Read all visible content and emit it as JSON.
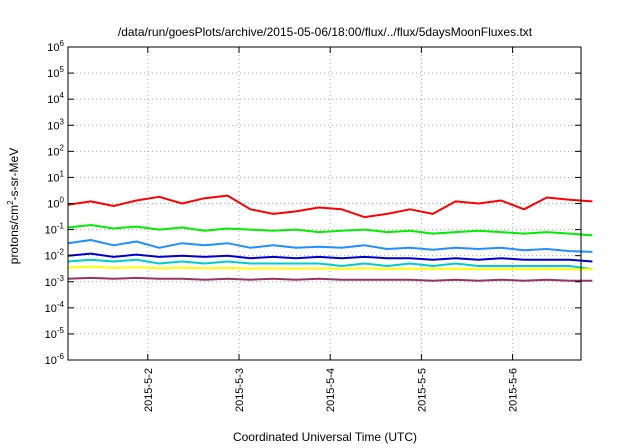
{
  "chart_data": {
    "type": "line",
    "title": "/data/run/goesPlots/archive/2015-05-06/18:00/flux/../flux/5daysMoonFluxes.txt",
    "xlabel": "Coordinated Universal Time (UTC)",
    "ylabel": {
      "pre": "protons/cm",
      "sup": "2",
      "post": "-s-sr-MeV"
    },
    "yscale": "log",
    "ylim": [
      1e-06,
      1000000.0
    ],
    "xlim": [
      "2015-05-01 03:00",
      "2015-05-06 18:00"
    ],
    "grid": true,
    "x_ticks": [
      "2015-5-2",
      "2015-5-3",
      "2015-5-4",
      "2015-5-5",
      "2015-5-6"
    ],
    "y_ticks": [
      {
        "base": "10",
        "exp": "-6"
      },
      {
        "base": "10",
        "exp": "-5"
      },
      {
        "base": "10",
        "exp": "-4"
      },
      {
        "base": "10",
        "exp": "-3"
      },
      {
        "base": "10",
        "exp": "-2"
      },
      {
        "base": "10",
        "exp": "-1"
      },
      {
        "base": "10",
        "exp": "0"
      },
      {
        "base": "10",
        "exp": "1"
      },
      {
        "base": "10",
        "exp": "2"
      },
      {
        "base": "10",
        "exp": "3"
      },
      {
        "base": "10",
        "exp": "4"
      },
      {
        "base": "10",
        "exp": "5"
      },
      {
        "base": "10",
        "exp": "6"
      }
    ],
    "x_days": [
      0.0,
      0.25,
      0.5,
      0.75,
      1.0,
      1.25,
      1.5,
      1.75,
      2.0,
      2.25,
      2.5,
      2.75,
      3.0,
      3.25,
      3.5,
      3.75,
      4.0,
      4.25,
      4.5,
      4.75,
      5.0,
      5.25,
      5.5,
      5.75
    ],
    "x_day_origin": "2015-05-01 03:00",
    "series": [
      {
        "color": "#ff0000",
        "values": [
          0.9,
          1.2,
          0.8,
          1.3,
          1.8,
          1.0,
          1.6,
          2.0,
          0.6,
          0.4,
          0.5,
          0.7,
          0.6,
          0.3,
          0.4,
          0.6,
          0.4,
          1.2,
          1.0,
          1.3,
          0.6,
          1.7,
          1.4,
          1.2
        ]
      },
      {
        "color": "#00ee00",
        "values": [
          0.12,
          0.15,
          0.11,
          0.13,
          0.1,
          0.12,
          0.09,
          0.11,
          0.1,
          0.09,
          0.1,
          0.08,
          0.09,
          0.1,
          0.08,
          0.09,
          0.07,
          0.08,
          0.09,
          0.08,
          0.07,
          0.08,
          0.07,
          0.06
        ]
      },
      {
        "color": "#1e90ff",
        "values": [
          0.03,
          0.04,
          0.025,
          0.035,
          0.02,
          0.03,
          0.025,
          0.03,
          0.02,
          0.025,
          0.02,
          0.022,
          0.02,
          0.025,
          0.018,
          0.02,
          0.017,
          0.02,
          0.018,
          0.02,
          0.016,
          0.018,
          0.015,
          0.014
        ]
      },
      {
        "color": "#0000cc",
        "values": [
          0.01,
          0.012,
          0.009,
          0.011,
          0.009,
          0.01,
          0.009,
          0.01,
          0.008,
          0.009,
          0.008,
          0.009,
          0.008,
          0.009,
          0.008,
          0.008,
          0.007,
          0.008,
          0.007,
          0.008,
          0.007,
          0.007,
          0.007,
          0.006
        ]
      },
      {
        "color": "#00cccc",
        "values": [
          0.006,
          0.007,
          0.006,
          0.007,
          0.005,
          0.006,
          0.005,
          0.006,
          0.005,
          0.005,
          0.005,
          0.005,
          0.004,
          0.005,
          0.004,
          0.005,
          0.004,
          0.005,
          0.004,
          0.004,
          0.004,
          0.004,
          0.004,
          0.003
        ]
      },
      {
        "color": "#ffff00",
        "values": [
          0.0035,
          0.0038,
          0.0034,
          0.0036,
          0.0033,
          0.0035,
          0.0033,
          0.0034,
          0.0032,
          0.0033,
          0.0032,
          0.0033,
          0.0031,
          0.0033,
          0.0031,
          0.0032,
          0.0031,
          0.0032,
          0.003,
          0.0031,
          0.003,
          0.0031,
          0.003,
          0.003
        ]
      },
      {
        "color": "#993366",
        "values": [
          0.0013,
          0.0014,
          0.0013,
          0.0014,
          0.0013,
          0.0013,
          0.0012,
          0.0013,
          0.0012,
          0.0013,
          0.0012,
          0.0013,
          0.0012,
          0.0012,
          0.0012,
          0.0012,
          0.0011,
          0.0012,
          0.0011,
          0.0012,
          0.0011,
          0.0012,
          0.0011,
          0.0011
        ]
      }
    ]
  }
}
